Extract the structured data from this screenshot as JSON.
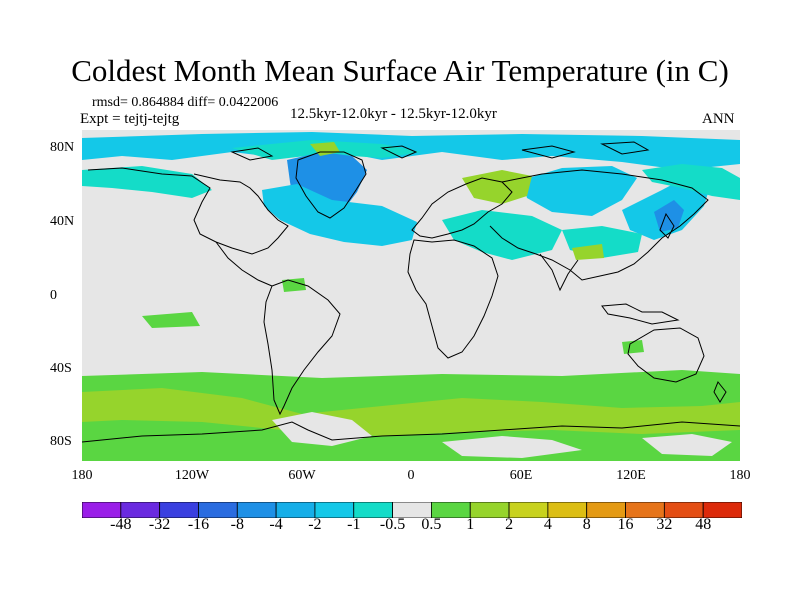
{
  "title": "Coldest Month Mean Surface Air Temperature (in C)",
  "stats": "rmsd= 0.864884  diff= 0.0422006",
  "experiment": "Expt = tejtj-tejtg",
  "period": "12.5kyr-12.0kyr - 12.5kyr-12.0kyr",
  "season": "ANN",
  "lat_labels": [
    "80N",
    "40N",
    "0",
    "40S",
    "80S"
  ],
  "lon_labels": [
    "180",
    "120W",
    "60W",
    "0",
    "60E",
    "120E",
    "180"
  ],
  "colorbar": {
    "labels": [
      "-48",
      "-32",
      "-16",
      "-8",
      "-4",
      "-2",
      "-1",
      "-0.5",
      "0.5",
      "1",
      "2",
      "4",
      "8",
      "16",
      "32",
      "48"
    ],
    "colors": [
      "#9a1ee8",
      "#6a2ae0",
      "#3a40e0",
      "#2a6ce0",
      "#1e90e6",
      "#16aee8",
      "#14c8e8",
      "#14dcc8",
      "#e6e6e6",
      "#5ad642",
      "#96d42c",
      "#c8d21e",
      "#dcbe14",
      "#e49a14",
      "#e6741a",
      "#e44e14",
      "#dc2a0a"
    ]
  },
  "map_colors": {
    "background": "#e6e6e6",
    "light_cyan": "#14dcc8",
    "cyan": "#14c8e8",
    "blue": "#1e90e6",
    "light_green": "#5ad642",
    "yellow_green": "#96d42c",
    "coast": "#000000"
  }
}
